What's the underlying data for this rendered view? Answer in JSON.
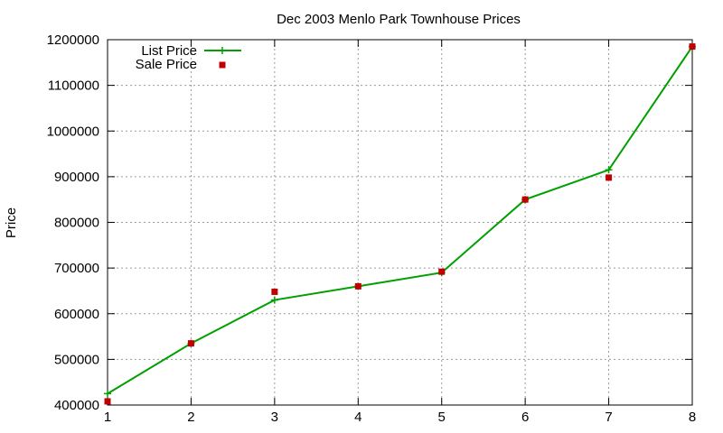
{
  "chart_data": {
    "type": "line",
    "title": "Dec 2003 Menlo Park Townhouse Prices",
    "xlabel": "",
    "ylabel": "Price",
    "xlim": [
      1,
      8
    ],
    "ylim": [
      400000,
      1200000
    ],
    "x_ticks": [
      1,
      2,
      3,
      4,
      5,
      6,
      7,
      8
    ],
    "y_ticks": [
      400000,
      500000,
      600000,
      700000,
      800000,
      900000,
      1000000,
      1100000,
      1200000
    ],
    "grid": true,
    "legend_position": "top-left",
    "x": [
      1,
      2,
      3,
      4,
      5,
      6,
      7,
      8
    ],
    "series": [
      {
        "name": "List Price",
        "style": "line-with-plus-markers",
        "color": "#00a000",
        "values": [
          425000,
          535000,
          630000,
          660000,
          690000,
          850000,
          915000,
          1185000
        ]
      },
      {
        "name": "Sale Price",
        "style": "square-markers",
        "color": "#c00000",
        "values": [
          408000,
          535000,
          648000,
          660000,
          692000,
          850000,
          898000,
          1185000
        ]
      }
    ]
  }
}
